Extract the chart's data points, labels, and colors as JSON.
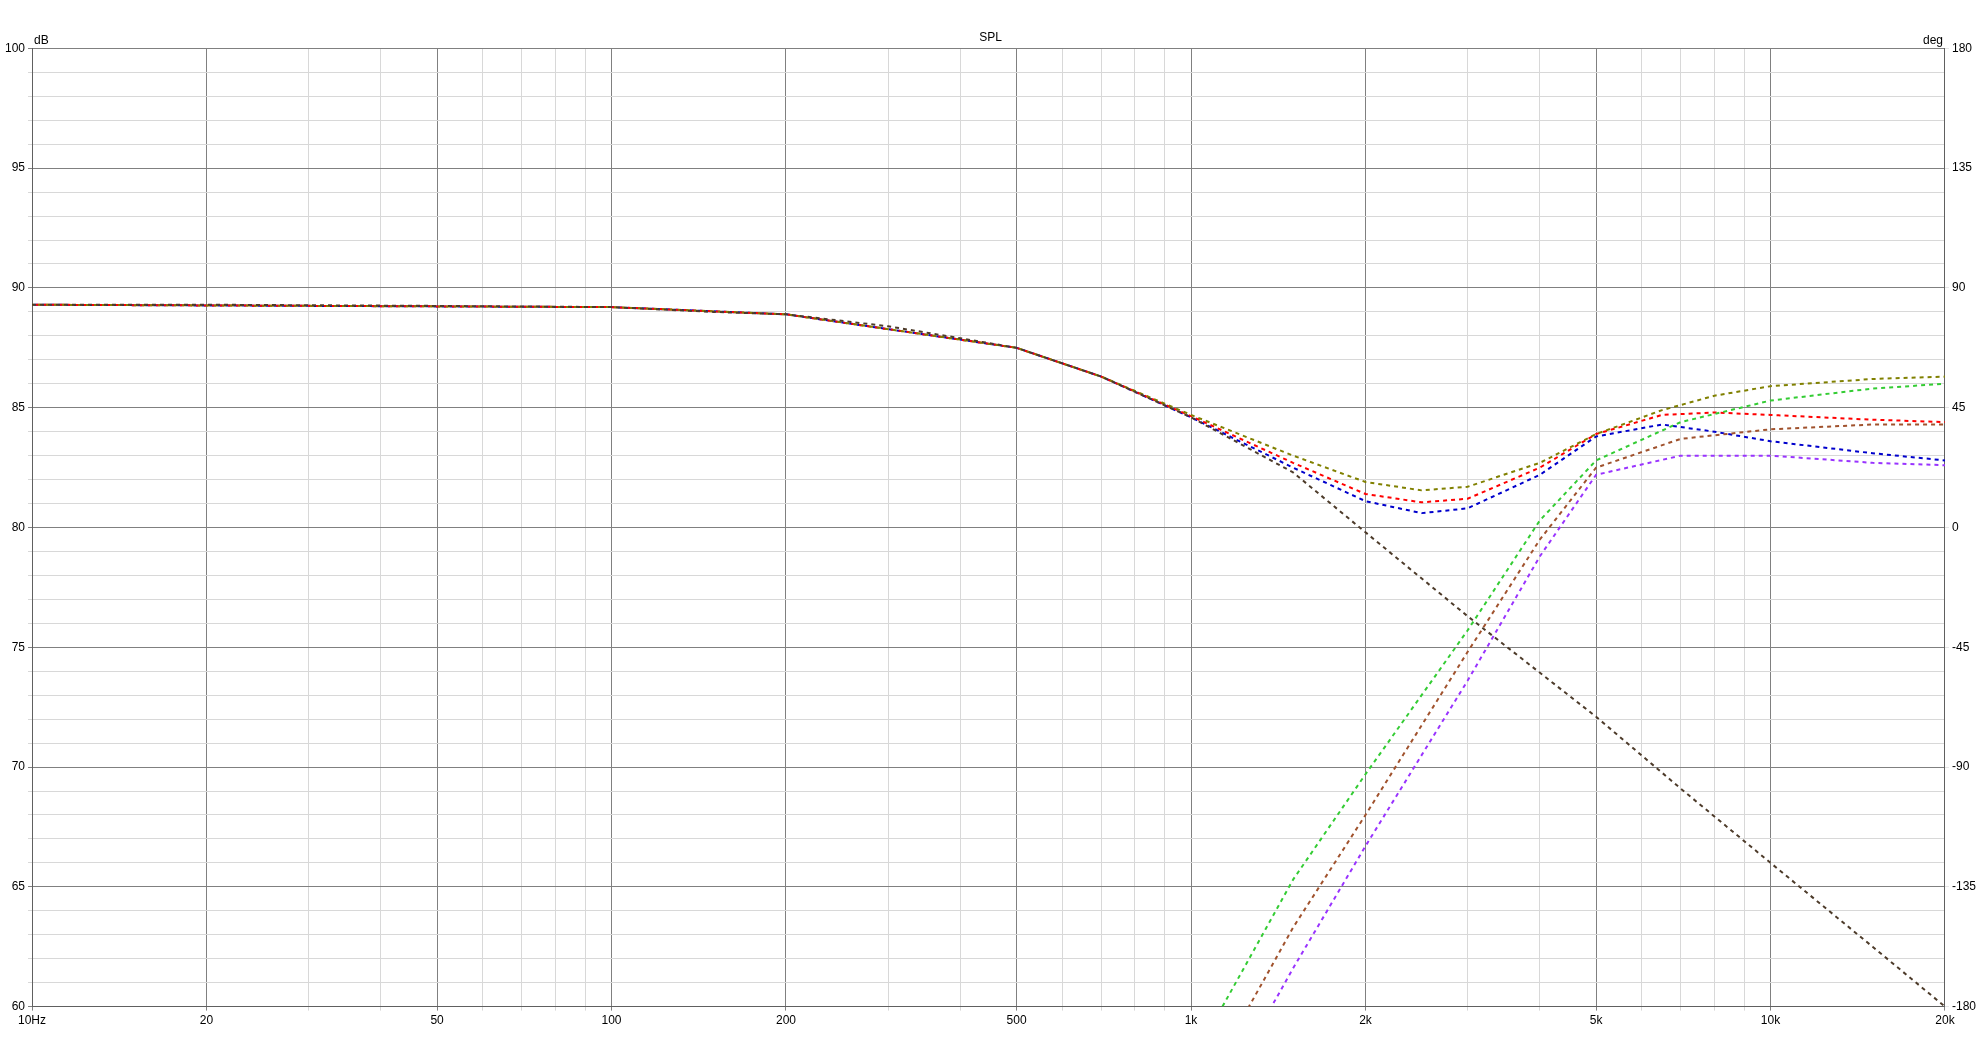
{
  "chart_data": {
    "type": "line",
    "title": "SPL",
    "ylabel": "dB",
    "y2label": "deg",
    "log": "x",
    "grid": true,
    "legend": false,
    "marker": "none",
    "line_style": "dashed",
    "xlim": [
      10,
      20000
    ],
    "xticks": [
      {
        "value": 10,
        "label": "10Hz"
      },
      20,
      {
        "value": 30,
        "label": null
      },
      {
        "value": 40,
        "label": null
      },
      50,
      {
        "value": 60,
        "label": null
      },
      {
        "value": 70,
        "label": null
      },
      {
        "value": 80,
        "label": null
      },
      {
        "value": 90,
        "label": null
      },
      100,
      200,
      {
        "value": 300,
        "label": null
      },
      {
        "value": 400,
        "label": null
      },
      500,
      {
        "value": 600,
        "label": null
      },
      {
        "value": 700,
        "label": null
      },
      {
        "value": 800,
        "label": null
      },
      {
        "value": 900,
        "label": null
      },
      {
        "value": 1000,
        "label": "1k"
      },
      {
        "value": 2000,
        "label": "2k"
      },
      {
        "value": 3000,
        "label": null
      },
      {
        "value": 4000,
        "label": null
      },
      {
        "value": 5000,
        "label": "5k"
      },
      {
        "value": 6000,
        "label": null
      },
      {
        "value": 7000,
        "label": null
      },
      {
        "value": 8000,
        "label": null
      },
      {
        "value": 9000,
        "label": null
      },
      {
        "value": 10000,
        "label": "10k"
      },
      {
        "value": 20000,
        "label": "20k"
      }
    ],
    "ylim": [
      60,
      100
    ],
    "yticks": [
      60,
      {
        "value": 61,
        "label": null
      },
      {
        "value": 62,
        "label": null
      },
      {
        "value": 63,
        "label": null
      },
      {
        "value": 64,
        "label": null
      },
      65,
      {
        "value": 66,
        "label": null
      },
      {
        "value": 67,
        "label": null
      },
      {
        "value": 68,
        "label": null
      },
      {
        "value": 69,
        "label": null
      },
      70,
      {
        "value": 71,
        "label": null
      },
      {
        "value": 72,
        "label": null
      },
      {
        "value": 73,
        "label": null
      },
      {
        "value": 74,
        "label": null
      },
      75,
      {
        "value": 76,
        "label": null
      },
      {
        "value": 77,
        "label": null
      },
      {
        "value": 78,
        "label": null
      },
      {
        "value": 79,
        "label": null
      },
      80,
      {
        "value": 81,
        "label": null
      },
      {
        "value": 82,
        "label": null
      },
      {
        "value": 83,
        "label": null
      },
      {
        "value": 84,
        "label": null
      },
      85,
      {
        "value": 86,
        "label": null
      },
      {
        "value": 87,
        "label": null
      },
      {
        "value": 88,
        "label": null
      },
      {
        "value": 89,
        "label": null
      },
      90,
      {
        "value": 91,
        "label": null
      },
      {
        "value": 92,
        "label": null
      },
      {
        "value": 93,
        "label": null
      },
      {
        "value": 94,
        "label": null
      },
      95,
      {
        "value": 96,
        "label": null
      },
      {
        "value": 97,
        "label": null
      },
      {
        "value": 98,
        "label": null
      },
      {
        "value": 99,
        "label": null
      },
      100
    ],
    "y2lim": [
      -180,
      180
    ],
    "y2ticks": [
      -180,
      -135,
      -90,
      -45,
      0,
      45,
      90,
      135,
      180
    ],
    "series": [
      {
        "color": "#4d3b2a",
        "x": [
          10,
          20,
          50,
          100,
          150,
          200,
          300,
          400,
          500,
          700,
          1000,
          1500,
          2000,
          3000,
          5000,
          7000,
          10000,
          15000,
          20000
        ],
        "values": [
          89.3,
          89.3,
          89.25,
          89.2,
          89.0,
          88.9,
          88.4,
          87.9,
          87.5,
          86.3,
          84.6,
          82.3,
          79.8,
          76.3,
          72.1,
          69.1,
          66.0,
          62.5,
          60
        ]
      },
      {
        "color": "#33cc33",
        "x": [
          1133,
          1500,
          2000,
          3000,
          4000,
          5000,
          7000,
          10000,
          15000,
          20000
        ],
        "values": [
          60,
          65.3,
          69.7,
          75.7,
          80.3,
          82.8,
          84.4,
          85.3,
          85.8,
          86.0
        ]
      },
      {
        "color": "#a0522d",
        "x": [
          1259,
          1500,
          2000,
          3000,
          4000,
          5000,
          7000,
          10000,
          15000,
          20000
        ],
        "values": [
          60,
          63.3,
          68.0,
          74.8,
          79.5,
          82.5,
          83.7,
          84.1,
          84.3,
          84.3
        ]
      },
      {
        "color": "#9933ff",
        "x": [
          1377,
          1500,
          2000,
          3000,
          4000,
          5000,
          7000,
          10000,
          15000,
          20000
        ],
        "values": [
          60,
          61.6,
          66.7,
          73.6,
          78.8,
          82.2,
          83.0,
          83.0,
          82.7,
          82.6
        ]
      },
      {
        "color": "#808000",
        "x": [
          10,
          100,
          200,
          500,
          700,
          1000,
          1500,
          2000,
          2500,
          3000,
          4000,
          5000,
          6500,
          8000,
          10000,
          15000,
          20000
        ],
        "values": [
          89.3,
          89.2,
          88.9,
          87.5,
          86.3,
          84.7,
          83.0,
          81.9,
          81.55,
          81.7,
          82.7,
          83.9,
          84.9,
          85.5,
          85.9,
          86.2,
          86.3
        ]
      },
      {
        "color": "#ff0000",
        "x": [
          10,
          100,
          200,
          500,
          700,
          1000,
          1500,
          2000,
          2500,
          3000,
          4000,
          5000,
          6500,
          8000,
          10000,
          15000,
          20000
        ],
        "values": [
          89.3,
          89.2,
          88.9,
          87.5,
          86.3,
          84.65,
          82.7,
          81.4,
          81.05,
          81.2,
          82.5,
          83.9,
          84.7,
          84.8,
          84.7,
          84.5,
          84.4
        ]
      },
      {
        "color": "#0000cc",
        "x": [
          10,
          100,
          200,
          500,
          700,
          1000,
          1500,
          2000,
          2500,
          3000,
          4000,
          5000,
          6500,
          8000,
          10000,
          15000,
          20000
        ],
        "values": [
          89.3,
          89.2,
          88.9,
          87.5,
          86.3,
          84.6,
          82.5,
          81.1,
          80.6,
          80.8,
          82.2,
          83.8,
          84.3,
          84.0,
          83.6,
          83.1,
          82.8
        ]
      }
    ]
  }
}
